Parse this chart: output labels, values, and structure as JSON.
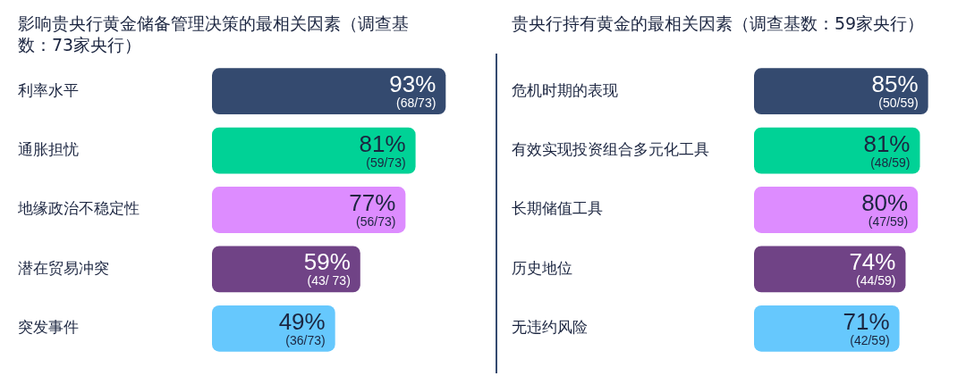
{
  "chart_data": [
    {
      "type": "bar",
      "orientation": "horizontal",
      "title": "影响贵央行黄金储备管理决策的最相关因素（调查基数：73家央行）",
      "categories": [
        "利率水平",
        "通胀担忧",
        "地缘政治不稳定性",
        "潜在贸易冲突",
        "突发事件"
      ],
      "values": [
        93,
        81,
        77,
        59,
        49
      ],
      "colors": [
        "#344a6f",
        "#00d296",
        "#dd8cff",
        "#704386",
        "#66c8fd"
      ],
      "value_labels": [
        "93%\n(68/73)",
        "81%\n(59/73)",
        "77%\n(56/73)",
        "59%\n(43/ 73)",
        "49%\n(36/73)"
      ],
      "tick_labels": "y"
    },
    {
      "type": "bar",
      "orientation": "horizontal",
      "title": "贵央行持有黄金的最相关因素（调查基数：59家央行）",
      "categories": [
        "危机时期的表现",
        "有效实现投资组合多元化工具",
        "长期储值工具",
        "历史地位",
        "无违约风险"
      ],
      "values": [
        85,
        81,
        80,
        74,
        71
      ],
      "colors": [
        "#344a6f",
        "#00d296",
        "#dd8cff",
        "#704386",
        "#66c8fd"
      ],
      "value_labels": [
        "85%\n(50/59)",
        "81%\n(48/59)",
        "80%\n(47/59)",
        "74%\n(44/59)",
        "71%\n(42/59)"
      ],
      "tick_labels": "y"
    }
  ]
}
